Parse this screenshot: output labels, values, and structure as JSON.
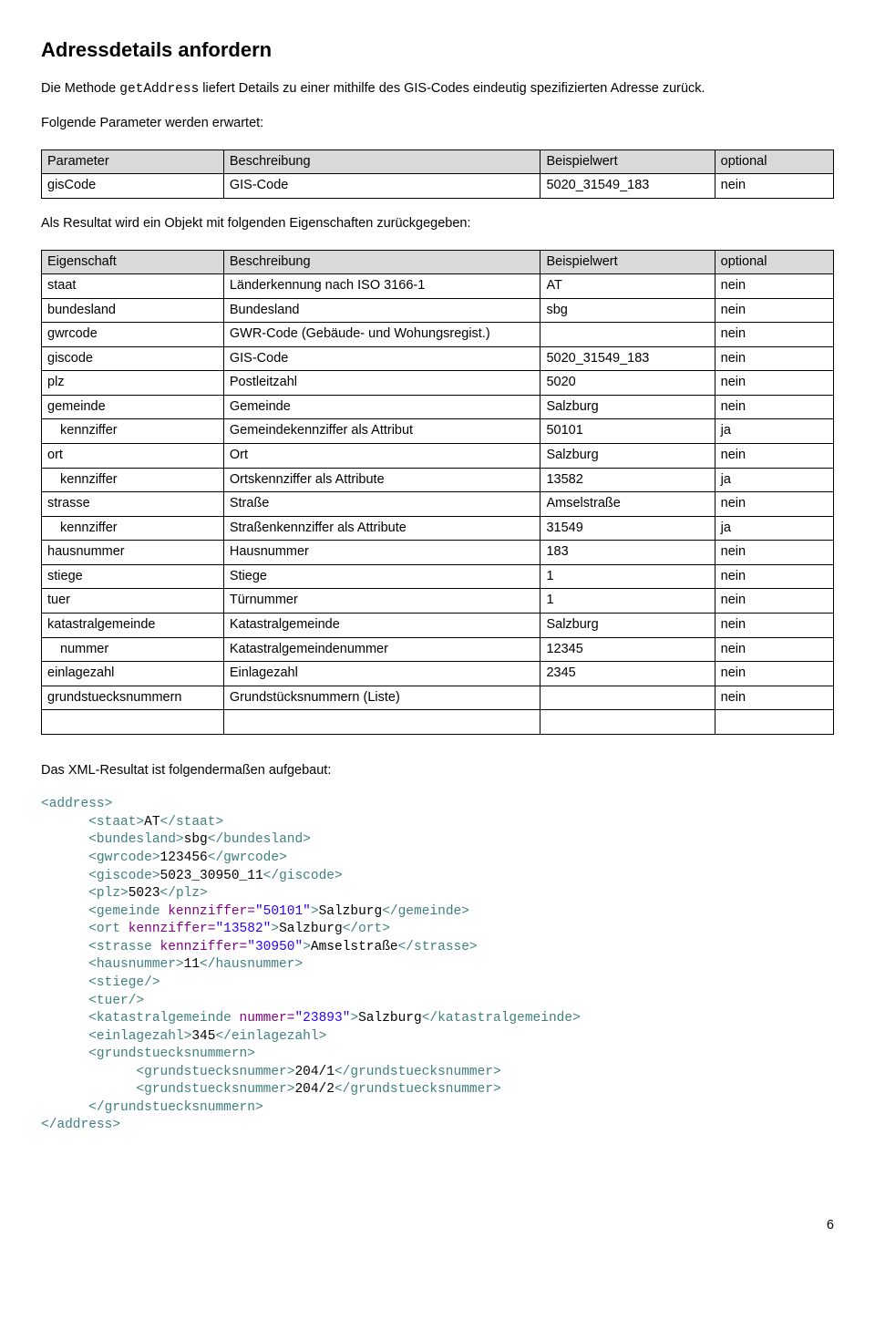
{
  "heading": "Adressdetails anfordern",
  "intro_pre": "Die Methode ",
  "intro_method": "getAddress",
  "intro_post": " liefert Details zu einer mithilfe des GIS-Codes eindeutig spezifizierten Adresse zurück.",
  "params_intro": "Folgende Parameter werden erwartet:",
  "params_table": {
    "headers": [
      "Parameter",
      "Beschreibung",
      "Beispielwert",
      "optional"
    ],
    "rows": [
      [
        "gisCode",
        "GIS-Code",
        "5020_31549_183",
        "nein"
      ]
    ]
  },
  "result_intro": "Als Resultat wird ein Objekt mit folgenden Eigenschaften zurückgegeben:",
  "result_table": {
    "headers": [
      "Eigenschaft",
      "Beschreibung",
      "Beispielwert",
      "optional"
    ],
    "rows": [
      {
        "indent": 0,
        "c": [
          "staat",
          "Länderkennung nach ISO 3166-1",
          "AT",
          "nein"
        ]
      },
      {
        "indent": 0,
        "c": [
          "bundesland",
          "Bundesland",
          "sbg",
          "nein"
        ]
      },
      {
        "indent": 0,
        "c": [
          "gwrcode",
          "GWR-Code (Gebäude- und Wohungsregist.)",
          "",
          "nein"
        ]
      },
      {
        "indent": 0,
        "c": [
          "giscode",
          "GIS-Code",
          "5020_31549_183",
          "nein"
        ]
      },
      {
        "indent": 0,
        "c": [
          "plz",
          "Postleitzahl",
          "5020",
          "nein"
        ]
      },
      {
        "indent": 0,
        "c": [
          "gemeinde",
          "Gemeinde",
          "Salzburg",
          "nein"
        ]
      },
      {
        "indent": 1,
        "c": [
          "kennziffer",
          "Gemeindekennziffer als Attribut",
          "50101",
          "ja"
        ]
      },
      {
        "indent": 0,
        "c": [
          "ort",
          "Ort",
          "Salzburg",
          "nein"
        ]
      },
      {
        "indent": 1,
        "c": [
          "kennziffer",
          "Ortskennziffer als Attribute",
          "13582",
          "ja"
        ]
      },
      {
        "indent": 0,
        "c": [
          "strasse",
          "Straße",
          "Amselstraße",
          "nein"
        ]
      },
      {
        "indent": 1,
        "c": [
          "kennziffer",
          "Straßenkennziffer als Attribute",
          "31549",
          "ja"
        ]
      },
      {
        "indent": 0,
        "c": [
          "hausnummer",
          "Hausnummer",
          "183",
          "nein"
        ]
      },
      {
        "indent": 0,
        "c": [
          "stiege",
          "Stiege",
          "1",
          "nein"
        ]
      },
      {
        "indent": 0,
        "c": [
          "tuer",
          "Türnummer",
          "1",
          "nein"
        ]
      },
      {
        "indent": 0,
        "c": [
          "katastralgemeinde",
          "Katastralgemeinde",
          "Salzburg",
          "nein"
        ]
      },
      {
        "indent": 1,
        "c": [
          "nummer",
          "Katastralgemeindenummer",
          "12345",
          "nein"
        ]
      },
      {
        "indent": 0,
        "c": [
          "einlagezahl",
          "Einlagezahl",
          "2345",
          "nein"
        ]
      },
      {
        "indent": 0,
        "c": [
          "grundstuecksnummern",
          "Grundstücksnummern (Liste)",
          "",
          "nein"
        ]
      }
    ],
    "trailing_blank_row": true
  },
  "xml_intro": "Das XML-Resultat ist folgendermaßen aufgebaut:",
  "xml": [
    {
      "i": 0,
      "t": [
        {
          "k": "tag",
          "v": "<address>"
        }
      ]
    },
    {
      "i": 1,
      "t": [
        {
          "k": "tag",
          "v": "<staat>"
        },
        {
          "k": "txt",
          "v": "AT"
        },
        {
          "k": "tag",
          "v": "</staat>"
        }
      ]
    },
    {
      "i": 1,
      "t": [
        {
          "k": "tag",
          "v": "<bundesland>"
        },
        {
          "k": "txt",
          "v": "sbg"
        },
        {
          "k": "tag",
          "v": "</bundesland>"
        }
      ]
    },
    {
      "i": 1,
      "t": [
        {
          "k": "tag",
          "v": "<gwrcode>"
        },
        {
          "k": "txt",
          "v": "123456"
        },
        {
          "k": "tag",
          "v": "</gwrcode>"
        }
      ]
    },
    {
      "i": 1,
      "t": [
        {
          "k": "tag",
          "v": "<giscode>"
        },
        {
          "k": "txt",
          "v": "5023_30950_11"
        },
        {
          "k": "tag",
          "v": "</giscode>"
        }
      ]
    },
    {
      "i": 1,
      "t": [
        {
          "k": "tag",
          "v": "<plz>"
        },
        {
          "k": "txt",
          "v": "5023"
        },
        {
          "k": "tag",
          "v": "</plz>"
        }
      ]
    },
    {
      "i": 1,
      "t": [
        {
          "k": "tag",
          "v": "<gemeinde "
        },
        {
          "k": "attr",
          "v": "kennziffer="
        },
        {
          "k": "val",
          "v": "\"50101\""
        },
        {
          "k": "tag",
          "v": ">"
        },
        {
          "k": "txt",
          "v": "Salzburg"
        },
        {
          "k": "tag",
          "v": "</gemeinde>"
        }
      ]
    },
    {
      "i": 1,
      "t": [
        {
          "k": "tag",
          "v": "<ort "
        },
        {
          "k": "attr",
          "v": "kennziffer="
        },
        {
          "k": "val",
          "v": "\"13582\""
        },
        {
          "k": "tag",
          "v": ">"
        },
        {
          "k": "txt",
          "v": "Salzburg"
        },
        {
          "k": "tag",
          "v": "</ort>"
        }
      ]
    },
    {
      "i": 1,
      "t": [
        {
          "k": "tag",
          "v": "<strasse "
        },
        {
          "k": "attr",
          "v": "kennziffer="
        },
        {
          "k": "val",
          "v": "\"30950\""
        },
        {
          "k": "tag",
          "v": ">"
        },
        {
          "k": "txt",
          "v": "Amselstraße"
        },
        {
          "k": "tag",
          "v": "</strasse>"
        }
      ]
    },
    {
      "i": 1,
      "t": [
        {
          "k": "tag",
          "v": "<hausnummer>"
        },
        {
          "k": "txt",
          "v": "11"
        },
        {
          "k": "tag",
          "v": "</hausnummer>"
        }
      ]
    },
    {
      "i": 1,
      "t": [
        {
          "k": "tag",
          "v": "<stiege/>"
        }
      ]
    },
    {
      "i": 1,
      "t": [
        {
          "k": "tag",
          "v": "<tuer/>"
        }
      ]
    },
    {
      "i": 1,
      "t": [
        {
          "k": "tag",
          "v": "<katastralgemeinde "
        },
        {
          "k": "attr",
          "v": "nummer="
        },
        {
          "k": "val",
          "v": "\"23893\""
        },
        {
          "k": "tag",
          "v": ">"
        },
        {
          "k": "txt",
          "v": "Salzburg"
        },
        {
          "k": "tag",
          "v": "</katastralgemeinde>"
        }
      ]
    },
    {
      "i": 1,
      "t": [
        {
          "k": "tag",
          "v": "<einlagezahl>"
        },
        {
          "k": "txt",
          "v": "345"
        },
        {
          "k": "tag",
          "v": "</einlagezahl>"
        }
      ]
    },
    {
      "i": 1,
      "t": [
        {
          "k": "tag",
          "v": "<grundstuecksnummern>"
        }
      ]
    },
    {
      "i": 2,
      "t": [
        {
          "k": "tag",
          "v": "<grundstuecksnummer>"
        },
        {
          "k": "txt",
          "v": "204/1"
        },
        {
          "k": "tag",
          "v": "</grundstuecksnummer>"
        }
      ]
    },
    {
      "i": 2,
      "t": [
        {
          "k": "tag",
          "v": "<grundstuecksnummer>"
        },
        {
          "k": "txt",
          "v": "204/2"
        },
        {
          "k": "tag",
          "v": "</grundstuecksnummer>"
        }
      ]
    },
    {
      "i": 1,
      "t": [
        {
          "k": "tag",
          "v": "</grundstuecksnummern>"
        }
      ]
    },
    {
      "i": 0,
      "t": [
        {
          "k": "tag",
          "v": "</address>"
        }
      ]
    }
  ],
  "page_number": "6"
}
